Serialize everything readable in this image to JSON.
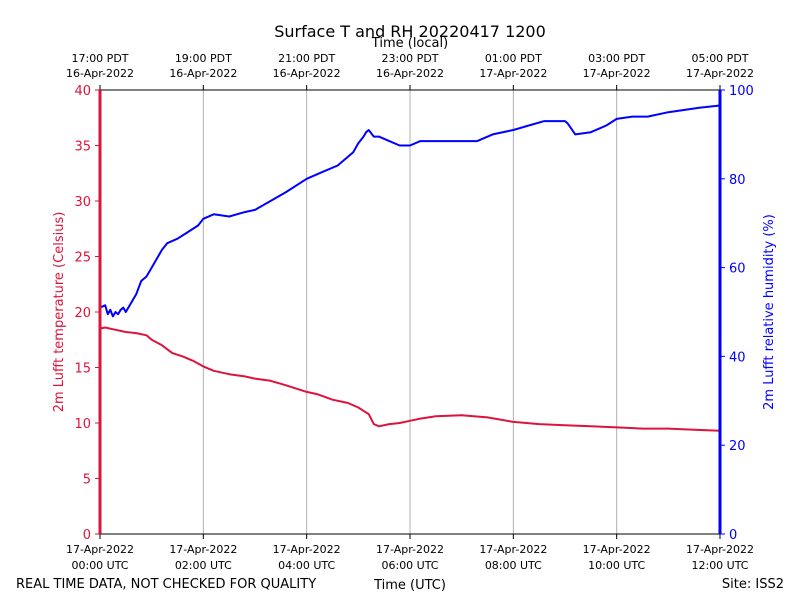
{
  "chart_data": {
    "type": "line",
    "title": "Surface T and RH 20220417 1200",
    "top_axis_title": "Time (local)",
    "xlabel": "Time (UTC)",
    "ylabel_left": "2m Lufft temperature (Celsius)",
    "ylabel_right": "2m Lufft relative humidity (%)",
    "footer_left": "REAL TIME DATA, NOT CHECKED FOR QUALITY",
    "footer_right": "Site: ISS2",
    "x_range_hours": [
      0,
      12
    ],
    "ylim_left": [
      0,
      40
    ],
    "ylim_right": [
      0,
      100
    ],
    "left_ticks": [
      0,
      5,
      10,
      15,
      20,
      25,
      30,
      35,
      40
    ],
    "right_ticks": [
      0,
      20,
      40,
      60,
      80,
      100
    ],
    "grid": "vertical",
    "colors": {
      "temperature": "#dc143c",
      "humidity": "#0000ff",
      "grid": "#b0b0b0",
      "axis": "#000000"
    },
    "bottom_ticks": [
      {
        "hour": 0,
        "date": "17-Apr-2022",
        "time": "00:00 UTC"
      },
      {
        "hour": 2,
        "date": "17-Apr-2022",
        "time": "02:00 UTC"
      },
      {
        "hour": 4,
        "date": "17-Apr-2022",
        "time": "04:00 UTC"
      },
      {
        "hour": 6,
        "date": "17-Apr-2022",
        "time": "06:00 UTC"
      },
      {
        "hour": 8,
        "date": "17-Apr-2022",
        "time": "08:00 UTC"
      },
      {
        "hour": 10,
        "date": "17-Apr-2022",
        "time": "10:00 UTC"
      },
      {
        "hour": 12,
        "date": "17-Apr-2022",
        "time": "12:00 UTC"
      }
    ],
    "top_ticks": [
      {
        "hour": 0,
        "time": "17:00 PDT",
        "date": "16-Apr-2022"
      },
      {
        "hour": 2,
        "time": "19:00 PDT",
        "date": "16-Apr-2022"
      },
      {
        "hour": 4,
        "time": "21:00 PDT",
        "date": "16-Apr-2022"
      },
      {
        "hour": 6,
        "time": "23:00 PDT",
        "date": "16-Apr-2022"
      },
      {
        "hour": 8,
        "time": "01:00 PDT",
        "date": "17-Apr-2022"
      },
      {
        "hour": 10,
        "time": "03:00 PDT",
        "date": "17-Apr-2022"
      },
      {
        "hour": 12,
        "time": "05:00 PDT",
        "date": "17-Apr-2022"
      }
    ],
    "series": [
      {
        "name": "Temperature",
        "axis": "left",
        "units": "Celsius",
        "x": [
          0.0,
          0.1,
          0.3,
          0.5,
          0.7,
          0.9,
          1.0,
          1.2,
          1.4,
          1.6,
          1.8,
          2.0,
          2.2,
          2.5,
          2.8,
          3.0,
          3.3,
          3.6,
          4.0,
          4.2,
          4.5,
          4.7,
          4.8,
          5.0,
          5.1,
          5.2,
          5.3,
          5.4,
          5.6,
          5.8,
          6.0,
          6.2,
          6.5,
          7.0,
          7.5,
          8.0,
          8.5,
          9.0,
          9.5,
          10.0,
          10.5,
          11.0,
          11.5,
          12.0
        ],
        "y": [
          18.5,
          18.6,
          18.4,
          18.2,
          18.1,
          17.9,
          17.5,
          17.0,
          16.3,
          16.0,
          15.6,
          15.1,
          14.7,
          14.4,
          14.2,
          14.0,
          13.8,
          13.4,
          12.8,
          12.6,
          12.1,
          11.9,
          11.8,
          11.4,
          11.1,
          10.8,
          9.9,
          9.7,
          9.9,
          10.0,
          10.2,
          10.4,
          10.6,
          10.7,
          10.5,
          10.1,
          9.9,
          9.8,
          9.7,
          9.6,
          9.5,
          9.5,
          9.4,
          9.3
        ]
      },
      {
        "name": "Relative humidity",
        "axis": "right",
        "units": "%",
        "x": [
          0.0,
          0.1,
          0.15,
          0.2,
          0.25,
          0.3,
          0.35,
          0.4,
          0.45,
          0.5,
          0.6,
          0.7,
          0.8,
          0.9,
          1.0,
          1.1,
          1.2,
          1.3,
          1.5,
          1.7,
          1.9,
          2.0,
          2.2,
          2.5,
          2.8,
          3.0,
          3.3,
          3.6,
          4.0,
          4.3,
          4.6,
          4.9,
          5.0,
          5.1,
          5.15,
          5.2,
          5.3,
          5.4,
          5.6,
          5.8,
          6.0,
          6.2,
          6.5,
          6.8,
          7.0,
          7.3,
          7.6,
          8.0,
          8.3,
          8.6,
          9.0,
          9.05,
          9.2,
          9.5,
          9.8,
          10.0,
          10.3,
          10.6,
          11.0,
          11.3,
          11.6,
          12.0
        ],
        "y": [
          51.0,
          51.5,
          49.5,
          50.5,
          49.0,
          50.0,
          49.5,
          50.5,
          51.0,
          50.0,
          52.0,
          54.0,
          57.0,
          58.0,
          60.0,
          62.0,
          64.0,
          65.5,
          66.5,
          68.0,
          69.5,
          71.0,
          72.0,
          71.5,
          72.5,
          73.0,
          75.0,
          77.0,
          80.0,
          81.5,
          83.0,
          86.0,
          88.0,
          89.5,
          90.5,
          91.0,
          89.5,
          89.5,
          88.5,
          87.5,
          87.5,
          88.5,
          88.5,
          88.5,
          88.5,
          88.5,
          90.0,
          91.0,
          92.0,
          93.0,
          93.0,
          92.5,
          90.0,
          90.5,
          92.0,
          93.5,
          94.0,
          94.0,
          95.0,
          95.5,
          96.0,
          96.5
        ]
      }
    ]
  }
}
